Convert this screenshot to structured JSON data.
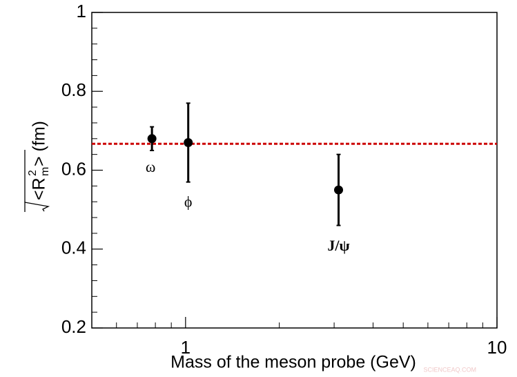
{
  "chart_data": {
    "type": "scatter",
    "x_label": "Mass of the meson probe (GeV)",
    "y_label_open": "<R",
    "y_label_sup": "2",
    "y_label_sub": "m",
    "y_label_close": "> (fm)",
    "xscale": "log",
    "xlim": [
      0.5,
      10
    ],
    "xticks": [
      1,
      10
    ],
    "xminor_ticks": [
      0.6,
      0.7,
      0.8,
      0.9,
      2,
      3,
      4,
      5,
      6,
      7,
      8,
      9
    ],
    "ylim": [
      0.2,
      1
    ],
    "yticks": [
      0.2,
      0.4,
      0.6,
      0.8,
      1
    ],
    "yminor_ticks": [
      0.24,
      0.28,
      0.32,
      0.36,
      0.44,
      0.48,
      0.52,
      0.56,
      0.64,
      0.68,
      0.72,
      0.76,
      0.84,
      0.88,
      0.92,
      0.96
    ],
    "x": [
      0.78,
      1.02,
      3.1
    ],
    "series": [
      {
        "color": "#000000",
        "values": [
          0.68,
          0.67,
          0.55
        ],
        "errors": [
          0.03,
          0.1,
          0.09
        ],
        "point_labels": [
          "ω",
          "ϕ",
          "J/ψ"
        ]
      }
    ],
    "reference_line": {
      "value": 0.667,
      "color": "#cc0000"
    },
    "watermark": "SCIENCEAQ.COM"
  }
}
